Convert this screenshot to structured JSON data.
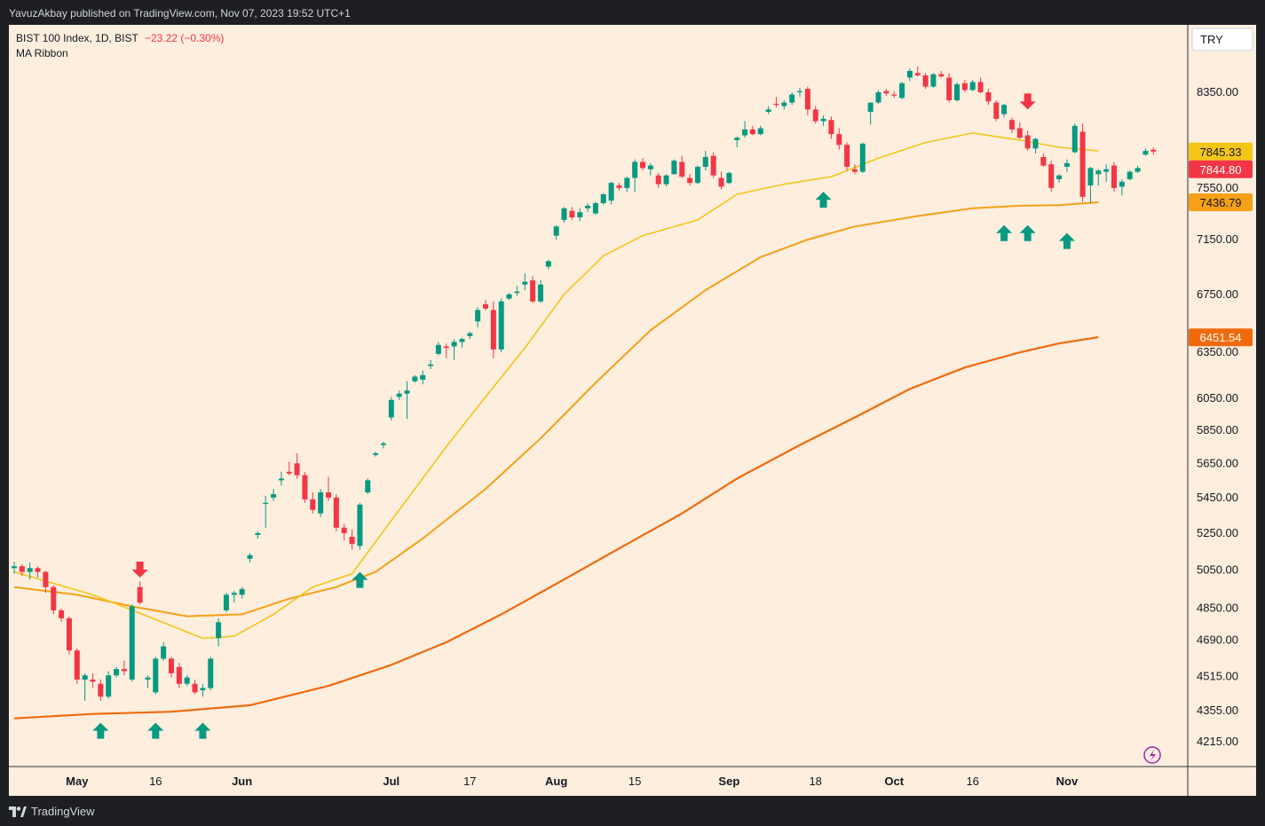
{
  "header": {
    "published": "YavuzAkbay published on TradingView.com, Nov 07, 2023 19:52 UTC+1"
  },
  "legend": {
    "symbol": "BIST 100 Index, 1D, BIST",
    "change": "−23.22 (−0.30%)",
    "indicator": "MA Ribbon"
  },
  "currency": "TRY",
  "footer": {
    "brand": "TradingView"
  },
  "colors": {
    "background": "#fdeede",
    "up": "#089981",
    "down": "#f23645",
    "ma_fast": "#f5c518",
    "ma_mid": "#f5a017",
    "ma_slow": "#f06a0c"
  },
  "chart_data": {
    "type": "candlestick",
    "scale": "log",
    "y_ticks": [
      4215,
      4355,
      4515,
      4690,
      4850,
      5050,
      5250,
      5450,
      5650,
      5850,
      6050,
      6350,
      6750,
      7150,
      7550,
      8350
    ],
    "y_tick_labels": [
      "4215.00",
      "4355.00",
      "4515.00",
      "4690.00",
      "4850.00",
      "5050.00",
      "5250.00",
      "5450.00",
      "5650.00",
      "5850.00",
      "6050.00",
      "6350.00",
      "6750.00",
      "7150.00",
      "7550.00",
      "8350.00"
    ],
    "x_ticks": [
      {
        "label": "May",
        "bold": true,
        "index": 8
      },
      {
        "label": "16",
        "bold": false,
        "index": 18
      },
      {
        "label": "Jun",
        "bold": true,
        "index": 29
      },
      {
        "label": "Jul",
        "bold": true,
        "index": 48
      },
      {
        "label": "17",
        "bold": false,
        "index": 58
      },
      {
        "label": "Aug",
        "bold": true,
        "index": 69
      },
      {
        "label": "15",
        "bold": false,
        "index": 79
      },
      {
        "label": "Sep",
        "bold": true,
        "index": 91
      },
      {
        "label": "18",
        "bold": false,
        "index": 102
      },
      {
        "label": "Oct",
        "bold": true,
        "index": 112
      },
      {
        "label": "16",
        "bold": false,
        "index": 122
      },
      {
        "label": "Nov",
        "bold": true,
        "index": 134
      }
    ],
    "price_labels": [
      {
        "value": 7845.33,
        "text": "7845.33",
        "series": "ma_fast"
      },
      {
        "value": 7844.8,
        "text": "7844.80",
        "series": "close"
      },
      {
        "value": 7436.79,
        "text": "7436.79",
        "series": "ma_mid"
      },
      {
        "value": 6451.54,
        "text": "6451.54",
        "series": "ma_slow"
      }
    ],
    "candles": [
      [
        5060,
        5095,
        5030,
        5070
      ],
      [
        5070,
        5080,
        5020,
        5040
      ],
      [
        5040,
        5090,
        5000,
        5060
      ],
      [
        5060,
        5070,
        5010,
        5040
      ],
      [
        5040,
        5045,
        4930,
        4960
      ],
      [
        4960,
        4970,
        4820,
        4840
      ],
      [
        4840,
        4850,
        4780,
        4800
      ],
      [
        4800,
        4810,
        4620,
        4640
      ],
      [
        4640,
        4650,
        4480,
        4500
      ],
      [
        4500,
        4530,
        4400,
        4520
      ],
      [
        4500,
        4530,
        4460,
        4490
      ],
      [
        4480,
        4500,
        4400,
        4420
      ],
      [
        4420,
        4540,
        4410,
        4520
      ],
      [
        4520,
        4560,
        4510,
        4550
      ],
      [
        4550,
        4590,
        4520,
        4540
      ],
      [
        4500,
        4870,
        4490,
        4860
      ],
      [
        4960,
        4990,
        4870,
        4880
      ],
      [
        4500,
        4520,
        4460,
        4510
      ],
      [
        4440,
        4610,
        4430,
        4600
      ],
      [
        4600,
        4680,
        4590,
        4660
      ],
      [
        4600,
        4610,
        4510,
        4530
      ],
      [
        4560,
        4580,
        4460,
        4480
      ],
      [
        4480,
        4520,
        4470,
        4510
      ],
      [
        4480,
        4500,
        4430,
        4440
      ],
      [
        4450,
        4480,
        4420,
        4460
      ],
      [
        4460,
        4610,
        4450,
        4600
      ],
      [
        4700,
        4800,
        4660,
        4780
      ],
      [
        4840,
        4930,
        4830,
        4920
      ],
      [
        4920,
        4940,
        4880,
        4930
      ],
      [
        4920,
        4960,
        4900,
        4950
      ],
      [
        5110,
        5140,
        5090,
        5130
      ],
      [
        5240,
        5260,
        5220,
        5250
      ],
      [
        5420,
        5460,
        5280,
        5420
      ],
      [
        5450,
        5500,
        5430,
        5470
      ],
      [
        5550,
        5600,
        5520,
        5560
      ],
      [
        5600,
        5660,
        5580,
        5590
      ],
      [
        5650,
        5710,
        5560,
        5580
      ],
      [
        5580,
        5600,
        5420,
        5440
      ],
      [
        5440,
        5480,
        5360,
        5380
      ],
      [
        5360,
        5500,
        5340,
        5480
      ],
      [
        5480,
        5570,
        5430,
        5450
      ],
      [
        5450,
        5470,
        5260,
        5280
      ],
      [
        5280,
        5300,
        5210,
        5250
      ],
      [
        5230,
        5270,
        5160,
        5190
      ],
      [
        5180,
        5420,
        5160,
        5410
      ],
      [
        5480,
        5560,
        5470,
        5550
      ],
      [
        5700,
        5720,
        5690,
        5710
      ],
      [
        5760,
        5780,
        5740,
        5770
      ],
      [
        5930,
        6060,
        5910,
        6040
      ],
      [
        6060,
        6100,
        6040,
        6080
      ],
      [
        6080,
        6160,
        5920,
        6100
      ],
      [
        6160,
        6200,
        6150,
        6190
      ],
      [
        6170,
        6230,
        6140,
        6200
      ],
      [
        6260,
        6300,
        6240,
        6270
      ],
      [
        6340,
        6420,
        6330,
        6400
      ],
      [
        6390,
        6410,
        6310,
        6380
      ],
      [
        6390,
        6440,
        6300,
        6420
      ],
      [
        6420,
        6450,
        6380,
        6440
      ],
      [
        6460,
        6490,
        6440,
        6480
      ],
      [
        6560,
        6660,
        6520,
        6640
      ],
      [
        6680,
        6710,
        6640,
        6650
      ],
      [
        6640,
        6700,
        6310,
        6370
      ],
      [
        6370,
        6720,
        6350,
        6700
      ],
      [
        6720,
        6760,
        6710,
        6750
      ],
      [
        6760,
        6810,
        6740,
        6770
      ],
      [
        6820,
        6900,
        6780,
        6840
      ],
      [
        6850,
        6880,
        6690,
        6700
      ],
      [
        6700,
        6850,
        6690,
        6820
      ],
      [
        6950,
        7000,
        6930,
        6990
      ],
      [
        7180,
        7260,
        7150,
        7250
      ],
      [
        7300,
        7400,
        7280,
        7390
      ],
      [
        7370,
        7400,
        7300,
        7320
      ],
      [
        7320,
        7390,
        7290,
        7360
      ],
      [
        7390,
        7430,
        7360,
        7410
      ],
      [
        7350,
        7440,
        7340,
        7430
      ],
      [
        7430,
        7510,
        7420,
        7500
      ],
      [
        7450,
        7600,
        7420,
        7590
      ],
      [
        7570,
        7590,
        7530,
        7550
      ],
      [
        7550,
        7640,
        7520,
        7630
      ],
      [
        7630,
        7780,
        7520,
        7760
      ],
      [
        7760,
        7790,
        7690,
        7710
      ],
      [
        7700,
        7750,
        7650,
        7730
      ],
      [
        7650,
        7670,
        7550,
        7580
      ],
      [
        7580,
        7660,
        7560,
        7650
      ],
      [
        7660,
        7780,
        7660,
        7770
      ],
      [
        7760,
        7810,
        7630,
        7640
      ],
      [
        7630,
        7660,
        7570,
        7590
      ],
      [
        7590,
        7730,
        7580,
        7720
      ],
      [
        7720,
        7850,
        7690,
        7800
      ],
      [
        7810,
        7840,
        7630,
        7650
      ],
      [
        7630,
        7680,
        7540,
        7560
      ],
      [
        7590,
        7680,
        7580,
        7670
      ],
      [
        7940,
        7970,
        7880,
        7960
      ],
      [
        7980,
        8100,
        7960,
        8030
      ],
      [
        8030,
        8060,
        7980,
        7990
      ],
      [
        7990,
        8060,
        7980,
        8040
      ],
      [
        8180,
        8230,
        8160,
        8200
      ],
      [
        8250,
        8310,
        8220,
        8240
      ],
      [
        8230,
        8280,
        8200,
        8260
      ],
      [
        8260,
        8350,
        8240,
        8330
      ],
      [
        8350,
        8390,
        8310,
        8360
      ],
      [
        8380,
        8400,
        8150,
        8200
      ],
      [
        8200,
        8230,
        8080,
        8100
      ],
      [
        8100,
        8150,
        8060,
        8120
      ],
      [
        8110,
        8140,
        7950,
        7990
      ],
      [
        7990,
        8040,
        7860,
        7900
      ],
      [
        7900,
        7920,
        7690,
        7720
      ],
      [
        7700,
        7740,
        7660,
        7680
      ],
      [
        7680,
        7920,
        7670,
        7910
      ],
      [
        8180,
        8220,
        8070,
        8260
      ],
      [
        8260,
        8370,
        8250,
        8350
      ],
      [
        8360,
        8380,
        8320,
        8340
      ],
      [
        8330,
        8360,
        8300,
        8320
      ],
      [
        8300,
        8440,
        8290,
        8430
      ],
      [
        8480,
        8560,
        8450,
        8540
      ],
      [
        8520,
        8580,
        8490,
        8500
      ],
      [
        8500,
        8520,
        8380,
        8400
      ],
      [
        8400,
        8520,
        8390,
        8510
      ],
      [
        8510,
        8540,
        8480,
        8490
      ],
      [
        8480,
        8520,
        8260,
        8280
      ],
      [
        8280,
        8440,
        8270,
        8420
      ],
      [
        8430,
        8460,
        8350,
        8370
      ],
      [
        8370,
        8460,
        8360,
        8440
      ],
      [
        8440,
        8480,
        8340,
        8350
      ],
      [
        8350,
        8380,
        8240,
        8270
      ],
      [
        8260,
        8280,
        8100,
        8120
      ],
      [
        8160,
        8250,
        8130,
        8240
      ],
      [
        8110,
        8130,
        8000,
        8030
      ],
      [
        8040,
        8090,
        7950,
        7960
      ],
      [
        7980,
        8020,
        7850,
        7870
      ],
      [
        7870,
        7960,
        7830,
        7950
      ],
      [
        7800,
        7830,
        7720,
        7730
      ],
      [
        7740,
        7770,
        7520,
        7550
      ],
      [
        7620,
        7660,
        7590,
        7650
      ],
      [
        7720,
        7780,
        7680,
        7750
      ],
      [
        7840,
        8080,
        7830,
        8060
      ],
      [
        8010,
        8080,
        7440,
        7480
      ],
      [
        7570,
        7720,
        7430,
        7710
      ],
      [
        7660,
        7700,
        7570,
        7690
      ],
      [
        7680,
        7740,
        7600,
        7700
      ],
      [
        7730,
        7760,
        7520,
        7550
      ],
      [
        7560,
        7620,
        7490,
        7600
      ],
      [
        7620,
        7690,
        7610,
        7680
      ],
      [
        7680,
        7730,
        7670,
        7710
      ],
      [
        7820,
        7870,
        7810,
        7850
      ],
      [
        7860,
        7880,
        7820,
        7845
      ]
    ],
    "ma_fast": [
      [
        0,
        5040
      ],
      [
        10,
        4920
      ],
      [
        17,
        4810
      ],
      [
        24,
        4700
      ],
      [
        28,
        4710
      ],
      [
        33,
        4820
      ],
      [
        38,
        4960
      ],
      [
        43,
        5030
      ],
      [
        48,
        5320
      ],
      [
        55,
        5750
      ],
      [
        60,
        6060
      ],
      [
        65,
        6380
      ],
      [
        70,
        6750
      ],
      [
        75,
        7030
      ],
      [
        80,
        7180
      ],
      [
        87,
        7300
      ],
      [
        92,
        7500
      ],
      [
        98,
        7580
      ],
      [
        104,
        7640
      ],
      [
        110,
        7790
      ],
      [
        116,
        7920
      ],
      [
        122,
        8000
      ],
      [
        128,
        7940
      ],
      [
        133,
        7880
      ],
      [
        138,
        7850
      ]
    ],
    "ma_mid": [
      [
        0,
        4960
      ],
      [
        8,
        4920
      ],
      [
        15,
        4860
      ],
      [
        22,
        4810
      ],
      [
        29,
        4820
      ],
      [
        35,
        4900
      ],
      [
        41,
        4960
      ],
      [
        46,
        5040
      ],
      [
        52,
        5220
      ],
      [
        60,
        5500
      ],
      [
        67,
        5800
      ],
      [
        74,
        6150
      ],
      [
        81,
        6500
      ],
      [
        88,
        6780
      ],
      [
        95,
        7020
      ],
      [
        101,
        7150
      ],
      [
        107,
        7250
      ],
      [
        115,
        7330
      ],
      [
        122,
        7390
      ],
      [
        128,
        7410
      ],
      [
        133,
        7415
      ],
      [
        138,
        7437
      ]
    ],
    "ma_slow": [
      [
        0,
        4320
      ],
      [
        10,
        4340
      ],
      [
        20,
        4350
      ],
      [
        30,
        4380
      ],
      [
        40,
        4470
      ],
      [
        48,
        4570
      ],
      [
        55,
        4680
      ],
      [
        62,
        4820
      ],
      [
        70,
        5000
      ],
      [
        78,
        5190
      ],
      [
        85,
        5360
      ],
      [
        92,
        5560
      ],
      [
        100,
        5760
      ],
      [
        107,
        5930
      ],
      [
        114,
        6110
      ],
      [
        121,
        6250
      ],
      [
        128,
        6350
      ],
      [
        133,
        6410
      ],
      [
        138,
        6452
      ]
    ],
    "signals": [
      {
        "type": "up",
        "index": 11,
        "price": 4300
      },
      {
        "type": "down",
        "index": 16,
        "price": 5010
      },
      {
        "type": "up",
        "index": 18,
        "price": 4300
      },
      {
        "type": "up",
        "index": 24,
        "price": 4300
      },
      {
        "type": "up",
        "index": 44,
        "price": 5040
      },
      {
        "type": "up",
        "index": 103,
        "price": 7520
      },
      {
        "type": "up",
        "index": 126,
        "price": 7260
      },
      {
        "type": "down",
        "index": 129,
        "price": 8200
      },
      {
        "type": "up",
        "index": 129,
        "price": 7260
      },
      {
        "type": "up",
        "index": 134,
        "price": 7200
      }
    ]
  }
}
